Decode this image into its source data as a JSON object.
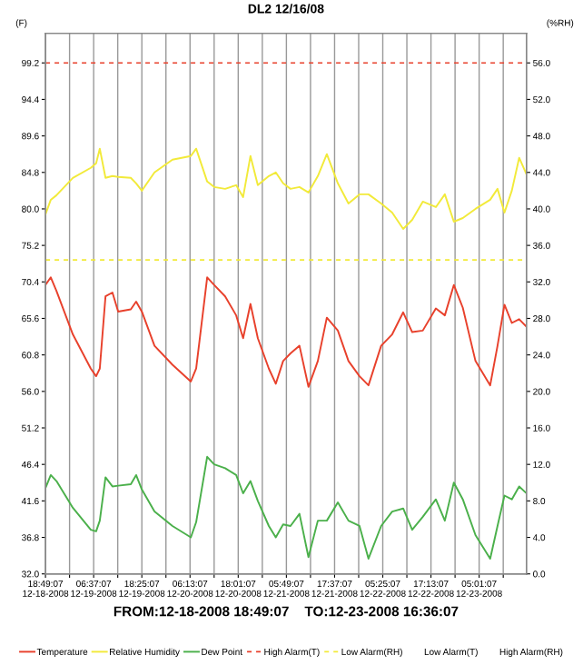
{
  "chart_data": {
    "type": "line",
    "title": "DL2 12/16/08",
    "xlabel": "FROM:12-18-2008 18:49:07    TO:12-23-2008 16:36:07",
    "ylabel": "(F)",
    "y2label": "(%RH)",
    "x": [
      "2008-12-18T18:49",
      "2008-12-18T20:07",
      "2008-12-18T21:31",
      "2008-12-19T01:31",
      "2008-12-19T05:55",
      "2008-12-19T07:13",
      "2008-12-19T08:07",
      "2008-12-19T09:31",
      "2008-12-19T11:13",
      "2008-12-19T12:37",
      "2008-12-19T15:43",
      "2008-12-19T17:01",
      "2008-12-19T18:25",
      "2008-12-19T21:31",
      "2008-12-20T01:55",
      "2008-12-20T06:25",
      "2008-12-20T07:43",
      "2008-12-20T10:25",
      "2008-12-20T12:07",
      "2008-12-20T14:49",
      "2008-12-20T17:31",
      "2008-12-20T19:13",
      "2008-12-20T21:01",
      "2008-12-20T22:49",
      "2008-12-21T01:31",
      "2008-12-21T03:13",
      "2008-12-21T05:01",
      "2008-12-21T06:49",
      "2008-12-21T09:01",
      "2008-12-21T11:13",
      "2008-12-21T13:31",
      "2008-12-21T15:43",
      "2008-12-21T18:25",
      "2008-12-21T21:01",
      "2008-12-21T23:43",
      "2008-12-22T01:55",
      "2008-12-22T05:01",
      "2008-12-22T07:43",
      "2008-12-22T10:25",
      "2008-12-22T12:37",
      "2008-12-22T15:13",
      "2008-12-22T18:25",
      "2008-12-22T20:37",
      "2008-12-22T22:49",
      "2008-12-23T01:01",
      "2008-12-23T04:07",
      "2008-12-23T07:43",
      "2008-12-23T09:31",
      "2008-12-23T11:13",
      "2008-12-23T13:01",
      "2008-12-23T14:49",
      "2008-12-23T16:36"
    ],
    "series": [
      {
        "name": "Temperature",
        "color": "#e8412c",
        "values": [
          70.0,
          71.0,
          69.2,
          63.5,
          59.0,
          58.0,
          59.0,
          68.5,
          69.0,
          66.5,
          66.8,
          67.8,
          66.5,
          62.0,
          59.5,
          57.3,
          59.0,
          71.0,
          70.0,
          68.5,
          66.0,
          63.0,
          67.5,
          63.0,
          59.0,
          57.0,
          60.0,
          61.0,
          62.0,
          56.6,
          60.0,
          65.7,
          64.0,
          60.0,
          58.0,
          56.8,
          62.0,
          63.5,
          66.4,
          63.8,
          64.0,
          66.9,
          66.0,
          70.0,
          67.0,
          60.0,
          56.8,
          62.0,
          67.4,
          65.0,
          65.5,
          64.5
        ]
      },
      {
        "name": "Relative Humidity",
        "color": "#f2ea3a",
        "axis": "y2",
        "values": [
          39.4,
          41.0,
          41.5,
          43.4,
          44.5,
          45.0,
          46.6,
          43.4,
          43.6,
          43.5,
          43.4,
          42.8,
          42.0,
          44.0,
          45.4,
          45.8,
          46.6,
          43.0,
          42.4,
          42.2,
          42.6,
          41.3,
          45.8,
          42.6,
          43.6,
          44.0,
          42.8,
          42.2,
          42.4,
          41.8,
          43.6,
          46.0,
          42.8,
          40.6,
          41.6,
          41.6,
          40.6,
          39.6,
          37.8,
          38.8,
          40.8,
          40.2,
          41.6,
          38.6,
          39.0,
          40.0,
          41.0,
          42.2,
          39.6,
          42.0,
          45.6,
          43.8
        ]
      },
      {
        "name": "Dew Point",
        "color": "#4bb04b",
        "values": [
          43.3,
          45.0,
          44.2,
          40.7,
          37.8,
          37.6,
          39.0,
          44.7,
          43.5,
          43.6,
          43.8,
          45.0,
          43.1,
          40.2,
          38.3,
          36.8,
          38.8,
          47.4,
          46.4,
          45.9,
          45.0,
          42.6,
          44.2,
          41.6,
          38.3,
          36.8,
          38.5,
          38.3,
          39.9,
          34.2,
          39.0,
          39.0,
          41.4,
          39.0,
          38.3,
          34.0,
          38.3,
          40.2,
          40.6,
          37.8,
          39.5,
          41.8,
          39.0,
          44.0,
          41.8,
          37.1,
          34.0,
          38.3,
          42.3,
          41.8,
          43.5,
          42.6
        ]
      }
    ],
    "ref_lines": [
      {
        "axis": "y",
        "value": 99.2,
        "label": "High Alarm(T)",
        "color": "#e8412c",
        "line_style": "dashed"
      },
      {
        "axis": "y2",
        "value": 34.4,
        "label": "Low Alarm(RH)",
        "color": "#f2ea3a",
        "line_style": "dashed"
      }
    ],
    "annotations": [
      "Low Alarm(T)",
      "High Alarm(RH)"
    ],
    "xlim": [
      "2008-12-18T18:49",
      "2008-12-23T16:36"
    ],
    "xticks": [
      {
        "value": "2008-12-18T18:49",
        "label": "18:49:07\n12-18-2008"
      },
      {
        "value": "2008-12-19T00:43",
        "label": null
      },
      {
        "value": "2008-12-19T06:37",
        "label": "06:37:07\n12-19-2008"
      },
      {
        "value": "2008-12-19T12:31",
        "label": null
      },
      {
        "value": "2008-12-19T18:25",
        "label": "18:25:07\n12-19-2008"
      },
      {
        "value": "2008-12-20T00:19",
        "label": null
      },
      {
        "value": "2008-12-20T06:13",
        "label": "06:13:07\n12-20-2008"
      },
      {
        "value": "2008-12-20T12:07",
        "label": null
      },
      {
        "value": "2008-12-20T18:01",
        "label": "18:01:07\n12-20-2008"
      },
      {
        "value": "2008-12-20T23:55",
        "label": null
      },
      {
        "value": "2008-12-21T05:49",
        "label": "05:49:07\n12-21-2008"
      },
      {
        "value": "2008-12-21T11:43",
        "label": null
      },
      {
        "value": "2008-12-21T17:37",
        "label": "17:37:07\n12-21-2008"
      },
      {
        "value": "2008-12-21T23:31",
        "label": null
      },
      {
        "value": "2008-12-22T05:25",
        "label": "05:25:07\n12-22-2008"
      },
      {
        "value": "2008-12-22T11:19",
        "label": null
      },
      {
        "value": "2008-12-22T17:13",
        "label": "17:13:07\n12-22-2008"
      },
      {
        "value": "2008-12-22T23:07",
        "label": null
      },
      {
        "value": "2008-12-23T05:01",
        "label": "05:01:07\n12-23-2008"
      },
      {
        "value": "2008-12-23T10:55",
        "label": null
      }
    ],
    "ylim": [
      32,
      103.1
    ],
    "yticks": [
      {
        "value": 32.0,
        "label": "32.0"
      },
      {
        "value": 36.8,
        "label": "36.8"
      },
      {
        "value": 41.6,
        "label": "41.6"
      },
      {
        "value": 46.4,
        "label": "46.4"
      },
      {
        "value": 51.2,
        "label": "51.2"
      },
      {
        "value": 56.0,
        "label": "56.0"
      },
      {
        "value": 60.8,
        "label": "60.8"
      },
      {
        "value": 65.6,
        "label": "65.6"
      },
      {
        "value": 70.4,
        "label": "70.4"
      },
      {
        "value": 75.2,
        "label": "75.2"
      },
      {
        "value": 80.0,
        "label": "80.0"
      },
      {
        "value": 84.8,
        "label": "84.8"
      },
      {
        "value": 89.6,
        "label": "89.6"
      },
      {
        "value": 94.4,
        "label": "94.4"
      },
      {
        "value": 99.2,
        "label": "99.2"
      }
    ],
    "y2lim": [
      0,
      59.25
    ],
    "y2ticks": [
      {
        "value": 0,
        "label": "0.0"
      },
      {
        "value": 4,
        "label": "4.0"
      },
      {
        "value": 8,
        "label": "8.0"
      },
      {
        "value": 12,
        "label": "12.0"
      },
      {
        "value": 16,
        "label": "16.0"
      },
      {
        "value": 20,
        "label": "20.0"
      },
      {
        "value": 24,
        "label": "24.0"
      },
      {
        "value": 28,
        "label": "28.0"
      },
      {
        "value": 32,
        "label": "32.0"
      },
      {
        "value": 36,
        "label": "36.0"
      },
      {
        "value": 40,
        "label": "40.0"
      },
      {
        "value": 44,
        "label": "44.0"
      },
      {
        "value": 48,
        "label": "48.0"
      },
      {
        "value": 52,
        "label": "52.0"
      },
      {
        "value": 56,
        "label": "56.0"
      }
    ],
    "grid": "x",
    "legend": "bottom",
    "line_style": "solid",
    "marker": "none"
  }
}
